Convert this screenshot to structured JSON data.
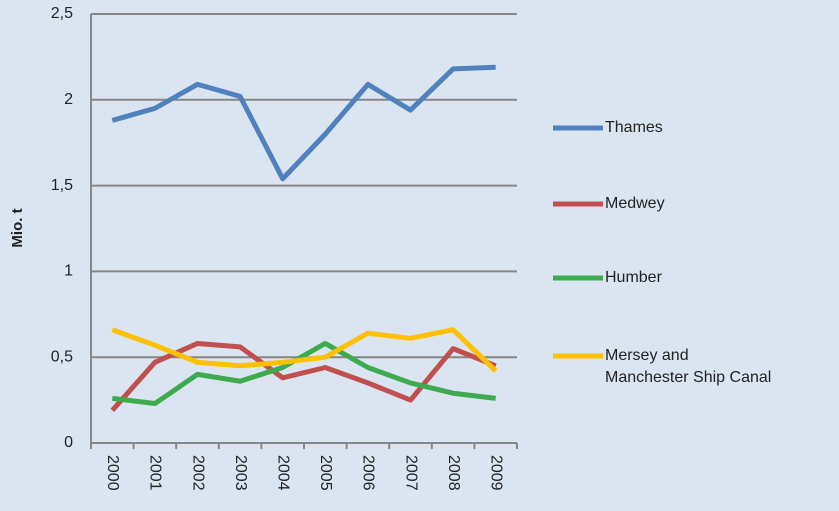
{
  "chart_data": {
    "type": "line",
    "y_label": "Mio. t",
    "categories": [
      "2000",
      "2001",
      "2002",
      "2003",
      "2004",
      "2005",
      "2006",
      "2007",
      "2008",
      "2009"
    ],
    "series": [
      {
        "name": "Thames",
        "color": "#4f81bd",
        "values": [
          1.88,
          1.95,
          2.09,
          2.02,
          1.54,
          1.8,
          2.09,
          1.94,
          2.18,
          2.19
        ]
      },
      {
        "name": "Medwey",
        "color": "#c0504d",
        "values": [
          0.19,
          0.47,
          0.58,
          0.56,
          0.38,
          0.44,
          0.35,
          0.25,
          0.55,
          0.45
        ]
      },
      {
        "name": "Humber",
        "color": "#3daa4e",
        "values": [
          0.26,
          0.23,
          0.4,
          0.36,
          0.44,
          0.58,
          0.44,
          0.35,
          0.29,
          0.26
        ]
      },
      {
        "name": "Mersey and Manchester Ship Canal",
        "color": "#ffc000",
        "values": [
          0.66,
          0.57,
          0.47,
          0.45,
          0.47,
          0.5,
          0.64,
          0.61,
          0.66,
          0.42
        ]
      }
    ],
    "ylim": [
      0,
      2.5
    ],
    "yticks": [
      0,
      {
        "value": 0.5,
        "label": "0,5"
      },
      1,
      {
        "value": 1.5,
        "label": "1,5"
      },
      2,
      {
        "value": 2.5,
        "label": "2,5"
      }
    ],
    "grid": true
  }
}
